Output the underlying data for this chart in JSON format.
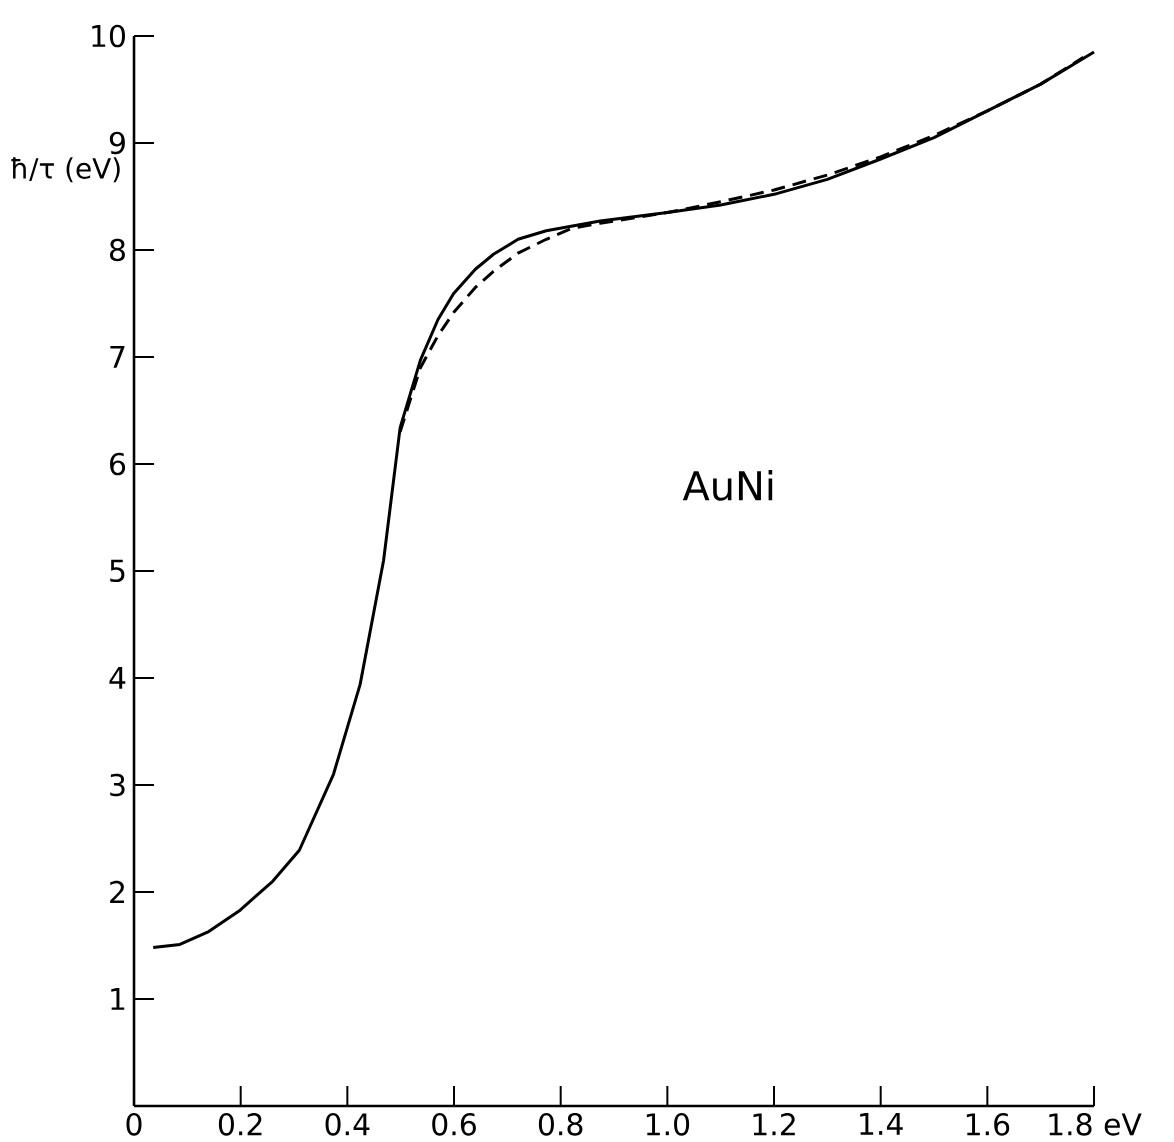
{
  "chart_data": {
    "type": "line",
    "ylabel": "ħ/τ (eV)",
    "annotations": [
      "AuNi"
    ],
    "xlim": [
      0,
      1.8
    ],
    "ylim": [
      0,
      10
    ],
    "xticks": [
      0,
      0.2,
      0.4,
      0.6,
      0.8,
      {
        "value": 1.0,
        "label": "1.0"
      },
      1.2,
      1.4,
      1.6,
      {
        "value": 1.8,
        "label": "1.8 eV"
      }
    ],
    "yticks": [
      {
        "value": 0,
        "label": null
      },
      1,
      2,
      3,
      4,
      5,
      6,
      7,
      8,
      9,
      10
    ],
    "grid": false,
    "marker": "none",
    "series": [
      {
        "color": "#000000",
        "line_style": "solid",
        "x": [
          0.036,
          0.086,
          0.14,
          0.199,
          0.26,
          0.31,
          0.374,
          0.424,
          0.468,
          0.499,
          0.537,
          0.57,
          0.599,
          0.64,
          0.674,
          0.72,
          0.773,
          0.874,
          1.0,
          1.1,
          1.2,
          1.3,
          1.4,
          1.5,
          1.6,
          1.7,
          1.8
        ],
        "values": [
          1.48,
          1.51,
          1.63,
          1.83,
          2.1,
          2.39,
          3.1,
          3.94,
          5.1,
          6.34,
          6.97,
          7.35,
          7.59,
          7.82,
          7.96,
          8.1,
          8.18,
          8.27,
          8.35,
          8.42,
          8.52,
          8.66,
          8.85,
          9.05,
          9.3,
          9.55,
          9.85
        ]
      },
      {
        "color": "#000000",
        "line_style": "dashed",
        "x": [
          0.499,
          0.537,
          0.57,
          0.6,
          0.64,
          0.674,
          0.72,
          0.773,
          0.82,
          0.874,
          1.0,
          1.1,
          1.2,
          1.3,
          1.4,
          1.5,
          1.6,
          1.7,
          1.78
        ],
        "values": [
          6.3,
          6.9,
          7.2,
          7.42,
          7.65,
          7.8,
          7.97,
          8.1,
          8.2,
          8.25,
          8.35,
          8.45,
          8.56,
          8.7,
          8.87,
          9.07,
          9.3,
          9.55,
          9.8
        ]
      }
    ]
  }
}
